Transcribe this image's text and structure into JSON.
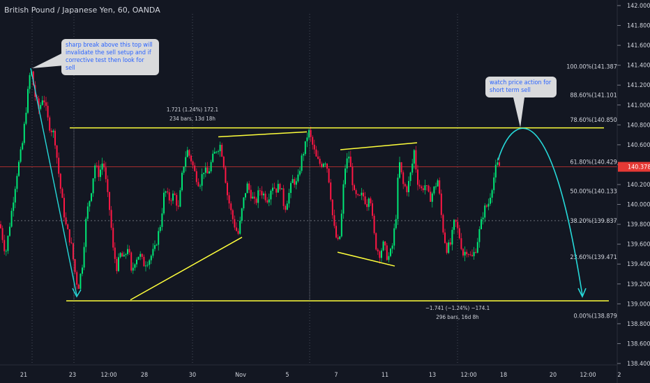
{
  "title": "British Pound / Japanese Yen, 60, OANDA",
  "colors": {
    "background": "#131722",
    "up": "#00e676",
    "down": "#ff1744",
    "channel": "#ffff3b",
    "arrow": "#26d9d9",
    "last_price": "#e53935",
    "text": "#d1d4dc"
  },
  "chart_data": {
    "type": "candlestick",
    "ylim": [
      138.4,
      142.0
    ],
    "y_ticks": [
      "142.000",
      "141.800",
      "141.600",
      "141.400",
      "141.200",
      "141.000",
      "140.800",
      "140.600",
      "140.400",
      "140.200",
      "140.000",
      "139.800",
      "139.600",
      "139.400",
      "139.200",
      "139.000",
      "138.800",
      "138.600",
      "138.400"
    ],
    "x_ticks": [
      "21",
      "23",
      "12:00",
      "28",
      "30",
      "Nov",
      "5",
      "7",
      "11",
      "13",
      "12:00",
      "18",
      "20",
      "12:00",
      "2"
    ],
    "last_price": {
      "value": 140.378,
      "label": "140.378"
    },
    "fib_levels": [
      {
        "label": "100.00%(141.387)",
        "value": 141.387
      },
      {
        "label": "88.60%(141.101)",
        "value": 141.101
      },
      {
        "label": "78.60%(140.850)",
        "value": 140.85
      },
      {
        "label": "61.80%(140.429)",
        "value": 140.429
      },
      {
        "label": "50.00%(140.133)",
        "value": 140.133
      },
      {
        "label": "38.20%(139.837)",
        "value": 139.837
      },
      {
        "label": "23.60%(139.471)",
        "value": 139.471
      },
      {
        "label": "0.00%(138.879)",
        "value": 138.879
      }
    ],
    "measure_up": {
      "line1": "1.721 (1.24%) 172.1",
      "line2": "234 bars, 13d 18h"
    },
    "measure_down": {
      "line1": "−1.741 (−1.24%) −174.1",
      "line2": "296 bars, 16d 8h"
    },
    "annotations": [
      "sharp break above this top will invalidate the sell setup and if corrective test then look for sell",
      "watch price action for short term sell"
    ],
    "path": [
      [
        0,
        139.8
      ],
      [
        8,
        139.5
      ],
      [
        16,
        139.9
      ],
      [
        24,
        140.3
      ],
      [
        32,
        140.6
      ],
      [
        38,
        141.0
      ],
      [
        44,
        141.38
      ],
      [
        50,
        141.1
      ],
      [
        56,
        140.95
      ],
      [
        62,
        141.1
      ],
      [
        70,
        140.8
      ],
      [
        78,
        140.7
      ],
      [
        86,
        140.2
      ],
      [
        94,
        139.8
      ],
      [
        102,
        139.6
      ],
      [
        108,
        139.3
      ],
      [
        112,
        139.15
      ],
      [
        118,
        139.4
      ],
      [
        124,
        139.9
      ],
      [
        130,
        140.1
      ],
      [
        136,
        140.4
      ],
      [
        142,
        140.3
      ],
      [
        148,
        140.45
      ],
      [
        154,
        140.1
      ],
      [
        158,
        139.9
      ],
      [
        162,
        139.55
      ],
      [
        168,
        139.35
      ],
      [
        172,
        139.5
      ],
      [
        178,
        139.45
      ],
      [
        184,
        139.6
      ],
      [
        188,
        139.3
      ],
      [
        194,
        139.45
      ],
      [
        200,
        139.5
      ],
      [
        206,
        139.4
      ],
      [
        214,
        139.45
      ],
      [
        222,
        139.55
      ],
      [
        230,
        139.8
      ],
      [
        236,
        140.15
      ],
      [
        242,
        140.05
      ],
      [
        250,
        140.1
      ],
      [
        256,
        139.95
      ],
      [
        262,
        140.35
      ],
      [
        268,
        140.55
      ],
      [
        274,
        140.45
      ],
      [
        280,
        140.3
      ],
      [
        286,
        140.2
      ],
      [
        292,
        140.35
      ],
      [
        298,
        140.3
      ],
      [
        304,
        140.45
      ],
      [
        310,
        140.55
      ],
      [
        316,
        140.6
      ],
      [
        320,
        140.45
      ],
      [
        326,
        140.1
      ],
      [
        332,
        139.9
      ],
      [
        338,
        139.75
      ],
      [
        342,
        139.7
      ],
      [
        348,
        140.0
      ],
      [
        354,
        140.2
      ],
      [
        360,
        140.1
      ],
      [
        366,
        140.0
      ],
      [
        372,
        140.15
      ],
      [
        378,
        140.1
      ],
      [
        384,
        140.05
      ],
      [
        390,
        140.2
      ],
      [
        396,
        140.15
      ],
      [
        402,
        140.2
      ],
      [
        408,
        139.95
      ],
      [
        414,
        140.1
      ],
      [
        420,
        140.25
      ],
      [
        426,
        140.2
      ],
      [
        432,
        140.45
      ],
      [
        438,
        140.6
      ],
      [
        442,
        140.75
      ],
      [
        448,
        140.6
      ],
      [
        454,
        140.45
      ],
      [
        460,
        140.4
      ],
      [
        466,
        140.45
      ],
      [
        470,
        140.35
      ],
      [
        474,
        140.1
      ],
      [
        478,
        139.8
      ],
      [
        484,
        139.6
      ],
      [
        488,
        139.7
      ],
      [
        494,
        140.35
      ],
      [
        500,
        140.5
      ],
      [
        504,
        140.3
      ],
      [
        508,
        140.1
      ],
      [
        514,
        140.05
      ],
      [
        520,
        140.1
      ],
      [
        526,
        140.0
      ],
      [
        530,
        140.15
      ],
      [
        534,
        139.85
      ],
      [
        538,
        139.6
      ],
      [
        544,
        139.5
      ],
      [
        550,
        139.6
      ],
      [
        556,
        139.45
      ],
      [
        562,
        139.55
      ],
      [
        568,
        139.9
      ],
      [
        572,
        140.45
      ],
      [
        578,
        140.2
      ],
      [
        584,
        140.15
      ],
      [
        590,
        140.35
      ],
      [
        594,
        140.55
      ],
      [
        598,
        140.25
      ],
      [
        604,
        140.15
      ],
      [
        610,
        140.2
      ],
      [
        616,
        140.05
      ],
      [
        622,
        140.15
      ],
      [
        628,
        140.25
      ],
      [
        634,
        139.8
      ],
      [
        640,
        139.55
      ],
      [
        646,
        139.6
      ],
      [
        652,
        139.85
      ],
      [
        658,
        139.7
      ],
      [
        664,
        139.5
      ],
      [
        670,
        139.55
      ],
      [
        676,
        139.45
      ],
      [
        682,
        139.55
      ],
      [
        688,
        139.75
      ],
      [
        694,
        139.95
      ],
      [
        700,
        140.0
      ],
      [
        706,
        140.2
      ],
      [
        712,
        140.4
      ],
      [
        718,
        140.38
      ]
    ],
    "channel_top": {
      "x": [
        100,
        866
      ],
      "y": [
        140.77,
        140.77
      ]
    },
    "channel_bottom": {
      "x": [
        95,
        873
      ],
      "y": [
        139.03,
        139.03
      ]
    },
    "trend_lines": [
      {
        "x": [
          187,
          347
        ],
        "y": [
          139.04,
          139.67
        ]
      },
      {
        "x": [
          313,
          440
        ],
        "y": [
          140.68,
          140.73
        ]
      },
      {
        "x": [
          488,
          598
        ],
        "y": [
          140.55,
          140.62
        ]
      },
      {
        "x": [
          484,
          566
        ],
        "y": [
          139.52,
          139.38
        ]
      }
    ]
  }
}
